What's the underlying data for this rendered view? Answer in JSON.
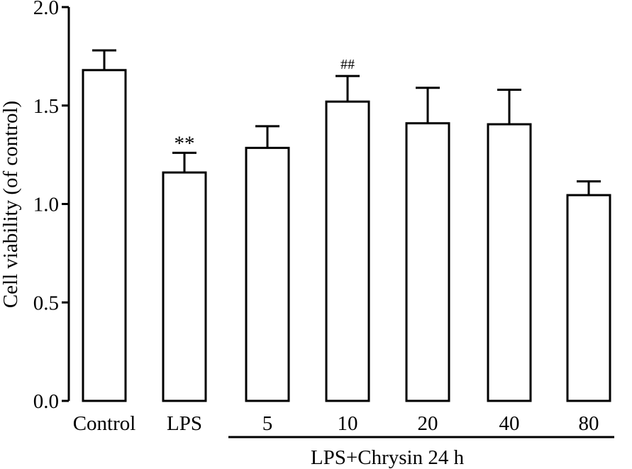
{
  "chart_data": {
    "type": "bar",
    "categories": [
      "Control",
      "LPS",
      "5",
      "10",
      "20",
      "40",
      "80"
    ],
    "values": [
      1.68,
      1.16,
      1.285,
      1.52,
      1.41,
      1.405,
      1.045
    ],
    "errors": [
      0.1,
      0.1,
      0.11,
      0.13,
      0.18,
      0.175,
      0.07
    ],
    "annotations": [
      "",
      "**",
      "",
      "##",
      "",
      "",
      ""
    ],
    "ylabel": "Cell viability (of control)",
    "xlabel": "",
    "ylim": [
      0,
      2.0
    ],
    "yticks": [
      "0.0",
      "0.5",
      "1.0",
      "1.5",
      "2.0"
    ],
    "group_label": "LPS+Chrysin 24 h",
    "grid": false,
    "bar_color": "#ffffff",
    "line_color": "#000000"
  }
}
